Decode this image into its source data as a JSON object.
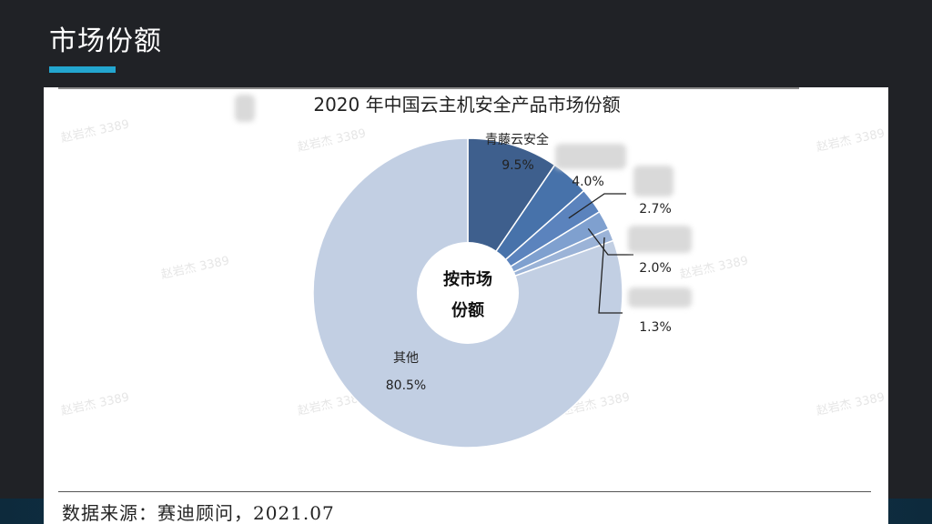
{
  "slide": {
    "title": "市场份额"
  },
  "figure": {
    "source": "数据来源：赛迪顾问，2021.07",
    "watermark": "赵岩杰 3389"
  },
  "chart_data": {
    "type": "pie",
    "style": "donut",
    "title": "2020 年中国云主机安全产品市场份额",
    "center_label": [
      "按市场",
      "份额"
    ],
    "start": "12 o'clock, clockwise",
    "slices": [
      {
        "label": "青藤云安全",
        "value": 9.5,
        "display": "9.5%",
        "color": "#3e5f8d"
      },
      {
        "label": "",
        "value": 4.0,
        "display": "4.0%",
        "color": "#4772aa"
      },
      {
        "label": "",
        "value": 2.7,
        "display": "2.7%",
        "color": "#5b83bd"
      },
      {
        "label": "",
        "value": 2.0,
        "display": "2.0%",
        "color": "#7fa0cf"
      },
      {
        "label": "",
        "value": 1.3,
        "display": "1.3%",
        "color": "#9bb3d7"
      },
      {
        "label": "其他",
        "value": 80.5,
        "display": "80.5%",
        "color": "#c2cfe3"
      }
    ]
  }
}
